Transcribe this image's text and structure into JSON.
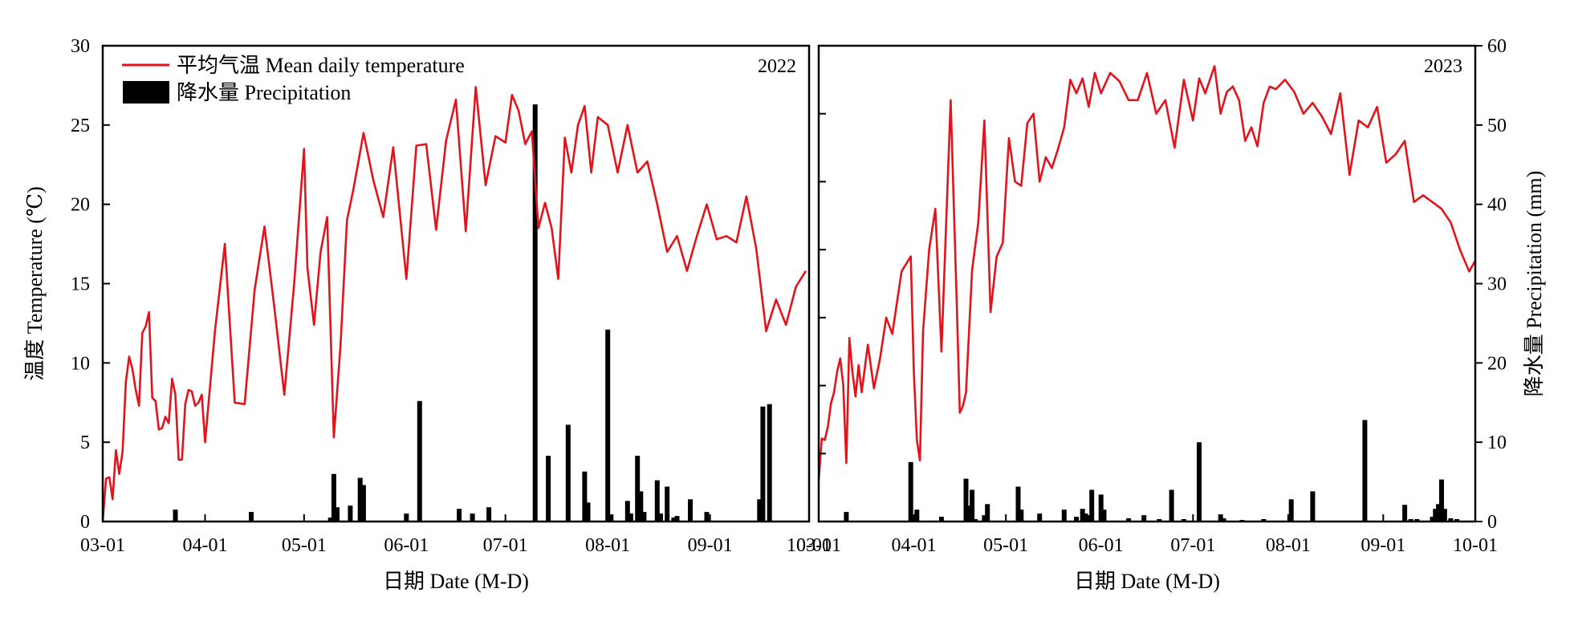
{
  "chart_data": [
    {
      "type": "line+bar",
      "panel_label": "2022",
      "xlabel": "日期 Date (M-D)",
      "ylabel": "温度 Temperature (℃)",
      "x_ticks": [
        "03-01",
        "04-01",
        "05-01",
        "06-01",
        "07-01",
        "08-01",
        "09-01",
        "10-01"
      ],
      "x_range": [
        "03-01",
        "10-01"
      ],
      "ylim": [
        0,
        30
      ],
      "y_ticks": [
        0,
        5,
        10,
        15,
        20,
        25,
        30
      ],
      "legend": {
        "position": "top-left",
        "temperature": "平均气温 Mean daily temperature",
        "precipitation": "降水量 Precipitation"
      },
      "colors": {
        "temperature": "#e3131b",
        "precipitation": "#000000"
      },
      "series": [
        {
          "name": "平均气温 Mean daily temperature",
          "unit": "℃",
          "x": [
            "03-01",
            "03-02",
            "03-03",
            "03-04",
            "03-05",
            "03-06",
            "03-07",
            "03-08",
            "03-09",
            "03-10",
            "03-11",
            "03-12",
            "03-13",
            "03-14",
            "03-15",
            "03-16",
            "03-17",
            "03-18",
            "03-19",
            "03-20",
            "03-21",
            "03-22",
            "03-23",
            "03-24",
            "03-25",
            "03-26",
            "03-27",
            "03-28",
            "03-29",
            "03-30",
            "03-31",
            "04-01",
            "04-04",
            "04-07",
            "04-10",
            "04-13",
            "04-16",
            "04-19",
            "04-22",
            "04-25",
            "04-28",
            "05-01",
            "05-02",
            "05-04",
            "05-06",
            "05-08",
            "05-10",
            "05-12",
            "05-14",
            "05-16",
            "05-19",
            "05-22",
            "05-25",
            "05-28",
            "06-01",
            "06-04",
            "06-07",
            "06-10",
            "06-13",
            "06-16",
            "06-19",
            "06-22",
            "06-25",
            "06-28",
            "07-01",
            "07-03",
            "07-05",
            "07-07",
            "07-09",
            "07-11",
            "07-13",
            "07-15",
            "07-17",
            "07-19",
            "07-21",
            "07-23",
            "07-25",
            "07-27",
            "07-29",
            "08-01",
            "08-04",
            "08-07",
            "08-10",
            "08-13",
            "08-16",
            "08-19",
            "08-22",
            "08-25",
            "08-28",
            "08-31",
            "09-03",
            "09-06",
            "09-09",
            "09-12",
            "09-15",
            "09-18",
            "09-21",
            "09-24",
            "09-27",
            "09-30"
          ],
          "y": [
            0.0,
            2.7,
            2.8,
            1.4,
            4.5,
            3.0,
            4.4,
            8.8,
            10.4,
            9.6,
            8.3,
            7.3,
            11.9,
            12.3,
            13.2,
            7.8,
            7.6,
            5.8,
            5.9,
            6.6,
            6.2,
            9.0,
            8.0,
            3.9,
            3.9,
            7.4,
            8.3,
            8.2,
            7.3,
            7.5,
            8.0,
            5.0,
            12.0,
            17.5,
            7.5,
            7.4,
            14.6,
            18.6,
            13.5,
            8.0,
            15.0,
            23.5,
            16.0,
            12.4,
            17.0,
            19.2,
            5.3,
            11.0,
            19.0,
            21.0,
            24.5,
            21.5,
            19.2,
            23.6,
            15.3,
            23.7,
            23.8,
            18.4,
            24.0,
            26.6,
            18.3,
            27.4,
            21.2,
            24.3,
            23.9,
            26.9,
            25.9,
            23.8,
            24.6,
            18.5,
            20.1,
            18.5,
            15.3,
            24.2,
            22.0,
            25.0,
            26.2,
            22.0,
            25.5,
            25.0,
            22.0,
            25.0,
            22.0,
            22.7,
            20.0,
            17.0,
            18.0,
            15.8,
            18.0,
            20.0,
            17.8,
            18.0,
            17.6,
            20.5,
            17.2,
            12.0,
            14.0,
            12.4,
            14.8,
            15.8
          ]
        },
        {
          "name": "降水量 Precipitation",
          "unit": "mm",
          "x": [
            "03-23",
            "04-15",
            "05-09",
            "05-10",
            "05-11",
            "05-15",
            "05-18",
            "05-19",
            "06-01",
            "06-05",
            "06-17",
            "06-21",
            "06-26",
            "07-10",
            "07-14",
            "07-20",
            "07-25",
            "07-26",
            "08-01",
            "08-02",
            "08-07",
            "08-08",
            "08-10",
            "08-11",
            "08-12",
            "08-16",
            "08-17",
            "08-19",
            "08-21",
            "08-22",
            "08-26",
            "08-31",
            "09-16",
            "09-17",
            "09-19"
          ],
          "y": [
            1.5,
            1.2,
            0.5,
            6.0,
            1.8,
            2.0,
            5.5,
            4.6,
            1.0,
            15.2,
            1.6,
            1.0,
            1.8,
            52.6,
            8.3,
            12.2,
            6.3,
            2.4,
            24.2,
            0.9,
            2.6,
            1.0,
            8.3,
            3.8,
            1.2,
            5.2,
            1.0,
            4.4,
            0.5,
            0.7,
            2.8,
            1.2,
            2.8,
            14.5,
            14.8
          ]
        }
      ]
    },
    {
      "type": "line+bar",
      "panel_label": "2023",
      "xlabel": "日期 Date (M-D)",
      "ylabel": "降水量 Precipitation (mm)",
      "x_ticks": [
        "03-01",
        "04-01",
        "05-01",
        "06-01",
        "07-01",
        "08-01",
        "09-01",
        "10-01"
      ],
      "x_range": [
        "03-01",
        "10-01"
      ],
      "ylim": [
        0,
        60
      ],
      "y_ticks": [
        0,
        10,
        20,
        30,
        40,
        50,
        60
      ],
      "temperature_scale": [
        0,
        35
      ],
      "colors": {
        "temperature": "#e3131b",
        "precipitation": "#000000"
      },
      "series": [
        {
          "name": "平均气温 Mean daily temperature",
          "unit": "℃",
          "x": [
            "03-01",
            "03-02",
            "03-03",
            "03-04",
            "03-05",
            "03-06",
            "03-07",
            "03-08",
            "03-09",
            "03-10",
            "03-11",
            "03-12",
            "03-13",
            "03-14",
            "03-15",
            "03-17",
            "03-19",
            "03-21",
            "03-23",
            "03-25",
            "03-28",
            "03-31",
            "04-01",
            "04-02",
            "04-03",
            "04-04",
            "04-06",
            "04-08",
            "04-10",
            "04-13",
            "04-15",
            "04-16",
            "04-17",
            "04-18",
            "04-20",
            "04-22",
            "04-24",
            "04-26",
            "04-28",
            "04-30",
            "05-02",
            "05-04",
            "05-06",
            "05-08",
            "05-10",
            "05-12",
            "05-14",
            "05-16",
            "05-18",
            "05-20",
            "05-22",
            "05-24",
            "05-26",
            "05-28",
            "05-30",
            "06-01",
            "06-04",
            "06-07",
            "06-10",
            "06-13",
            "06-16",
            "06-19",
            "06-22",
            "06-25",
            "06-28",
            "07-01",
            "07-03",
            "07-05",
            "07-08",
            "07-10",
            "07-12",
            "07-14",
            "07-16",
            "07-18",
            "07-20",
            "07-22",
            "07-24",
            "07-26",
            "07-28",
            "07-31",
            "08-03",
            "08-06",
            "08-09",
            "08-12",
            "08-15",
            "08-18",
            "08-21",
            "08-24",
            "08-27",
            "08-30",
            "09-02",
            "09-05",
            "09-08",
            "09-11",
            "09-14",
            "09-17",
            "09-20",
            "09-23",
            "09-26",
            "09-29",
            "10-01"
          ],
          "y": [
            3.0,
            6.1,
            6.0,
            7.0,
            8.7,
            9.5,
            11.0,
            12.0,
            10.0,
            4.3,
            13.5,
            11.0,
            9.2,
            11.5,
            9.5,
            13.0,
            9.8,
            12.0,
            15.0,
            13.8,
            18.4,
            19.5,
            11.0,
            6.0,
            4.5,
            14.0,
            20.0,
            23.0,
            12.5,
            31.0,
            16.0,
            8.0,
            8.5,
            9.5,
            18.5,
            22.0,
            29.5,
            15.4,
            19.5,
            20.5,
            28.2,
            25.0,
            24.7,
            29.3,
            30.0,
            25.0,
            26.8,
            26.0,
            27.4,
            29.0,
            32.5,
            31.5,
            32.6,
            30.5,
            33.0,
            31.5,
            33.0,
            32.4,
            31.0,
            31.0,
            33.0,
            30.0,
            31.0,
            27.5,
            32.5,
            29.5,
            32.6,
            31.5,
            33.5,
            30.0,
            31.6,
            32.0,
            31.0,
            28.0,
            29.0,
            27.6,
            30.8,
            32.0,
            31.8,
            32.5,
            31.6,
            30.0,
            30.8,
            29.8,
            28.5,
            31.5,
            25.5,
            29.5,
            29.0,
            30.5,
            26.4,
            27.0,
            28.0,
            23.5,
            24.0,
            23.5,
            23.0,
            22.0,
            20.0,
            18.4,
            19.2
          ]
        },
        {
          "name": "降水量 Precipitation",
          "unit": "mm",
          "x": [
            "03-10",
            "03-31",
            "04-02",
            "04-10",
            "04-18",
            "04-19",
            "04-20",
            "04-21",
            "04-24",
            "04-25",
            "05-05",
            "05-06",
            "05-12",
            "05-20",
            "05-24",
            "05-26",
            "05-27",
            "05-28",
            "05-29",
            "06-01",
            "06-02",
            "06-10",
            "06-15",
            "06-20",
            "06-24",
            "06-28",
            "07-03",
            "07-10",
            "07-11",
            "07-17",
            "07-24",
            "08-02",
            "08-09",
            "08-26",
            "09-08",
            "09-10",
            "09-12",
            "09-17",
            "09-18",
            "09-19",
            "09-20",
            "09-21",
            "09-23",
            "09-25"
          ],
          "y": [
            1.2,
            7.5,
            1.5,
            0.6,
            5.4,
            2.0,
            4.0,
            0.3,
            0.8,
            2.2,
            4.4,
            1.5,
            1.0,
            1.5,
            0.6,
            1.6,
            1.0,
            0.8,
            4.0,
            3.4,
            1.5,
            0.4,
            0.8,
            0.3,
            4.0,
            0.3,
            10.0,
            0.9,
            0.4,
            0.2,
            0.3,
            2.8,
            3.8,
            12.8,
            2.1,
            0.3,
            0.3,
            0.6,
            1.6,
            2.2,
            5.3,
            1.6,
            0.4,
            0.3
          ]
        }
      ]
    }
  ]
}
